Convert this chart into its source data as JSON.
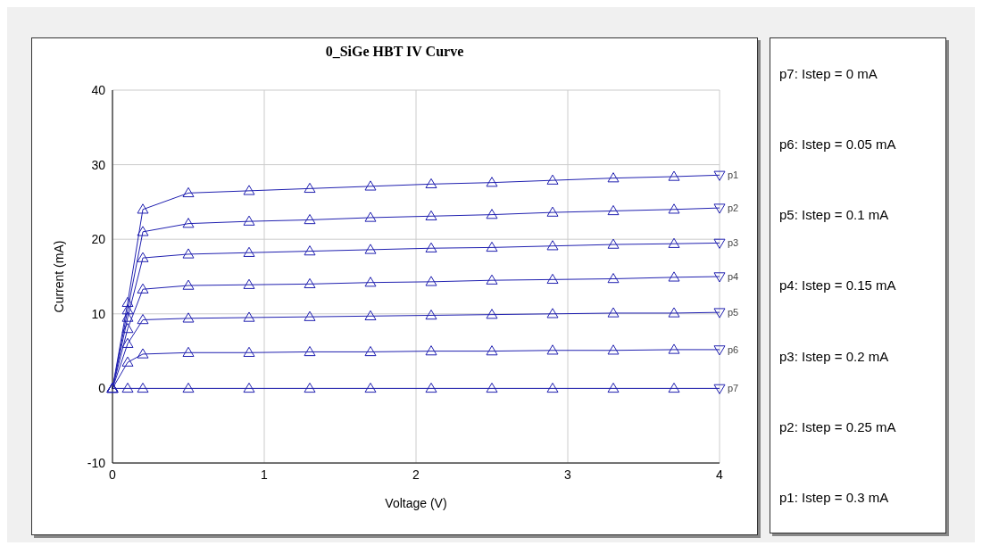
{
  "chart_data": {
    "type": "line",
    "title": "0_SiGe HBT IV Curve",
    "xlabel": "Voltage (V)",
    "ylabel": "Current (mA)",
    "x": [
      0,
      0.1,
      0.2,
      0.5,
      0.9,
      1.3,
      1.7,
      2.1,
      2.5,
      2.9,
      3.3,
      3.7,
      4
    ],
    "series": [
      {
        "name": "p1",
        "color": "#2020b0",
        "values": [
          0,
          11.5,
          24,
          26.2,
          26.5,
          26.8,
          27.1,
          27.4,
          27.6,
          27.9,
          28.2,
          28.4,
          28.6
        ]
      },
      {
        "name": "p2",
        "color": "#2020b0",
        "values": [
          0,
          10.5,
          21,
          22.1,
          22.4,
          22.6,
          22.9,
          23.1,
          23.3,
          23.6,
          23.8,
          24,
          24.2
        ]
      },
      {
        "name": "p3",
        "color": "#2020b0",
        "values": [
          0,
          9.5,
          17.5,
          18,
          18.2,
          18.4,
          18.6,
          18.8,
          18.9,
          19.1,
          19.3,
          19.4,
          19.5
        ]
      },
      {
        "name": "p4",
        "color": "#2020b0",
        "values": [
          0,
          8,
          13.3,
          13.8,
          13.9,
          14,
          14.2,
          14.3,
          14.5,
          14.6,
          14.7,
          14.9,
          15
        ]
      },
      {
        "name": "p5",
        "color": "#2020b0",
        "values": [
          0,
          6,
          9.2,
          9.4,
          9.5,
          9.6,
          9.7,
          9.8,
          9.9,
          10,
          10.1,
          10.1,
          10.2
        ]
      },
      {
        "name": "p6",
        "color": "#2020b0",
        "values": [
          0,
          3.5,
          4.6,
          4.8,
          4.8,
          4.9,
          4.9,
          5,
          5,
          5.1,
          5.1,
          5.2,
          5.2
        ]
      },
      {
        "name": "p7",
        "color": "#2020b0",
        "values": [
          0,
          0,
          0,
          0,
          0,
          0,
          0,
          0,
          0,
          0,
          0,
          0,
          0
        ]
      }
    ],
    "xlim": [
      0,
      4
    ],
    "xticks": [
      0,
      1,
      2,
      3,
      4
    ],
    "ylim": [
      -10,
      40
    ],
    "yticks": [
      -10,
      0,
      10,
      20,
      30,
      40
    ],
    "grid": true,
    "marker": "triangle",
    "line_style": "solid",
    "annotations": [
      "p7: Istep = 0 mA",
      "p6: Istep = 0.05 mA",
      "p5: Istep = 0.1 mA",
      "p4: Istep = 0.15 mA",
      "p3: Istep = 0.2 mA",
      "p2: Istep = 0.25 mA",
      "p1: Istep = 0.3 mA"
    ]
  }
}
